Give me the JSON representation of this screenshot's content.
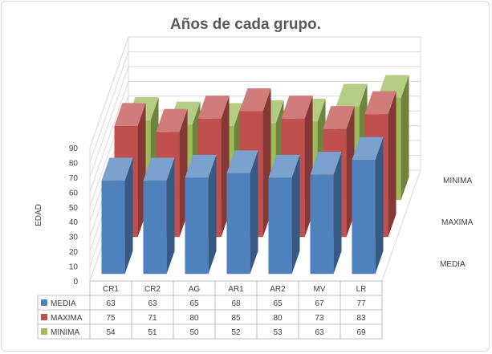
{
  "chart_data": {
    "type": "bar",
    "title": "Años de cada grupo.",
    "ylabel": "EDAD",
    "xlabel": "",
    "ylim": [
      0,
      90
    ],
    "yticks": [
      0,
      10,
      20,
      30,
      40,
      50,
      60,
      70,
      80,
      90
    ],
    "categories": [
      "CR1",
      "CR2",
      "AG",
      "AR1",
      "AR2",
      "MV",
      "LR"
    ],
    "series": [
      {
        "name": "MEDIA",
        "values": [
          63,
          63,
          65,
          68,
          65,
          67,
          77
        ]
      },
      {
        "name": "MAXIMA",
        "values": [
          75,
          71,
          80,
          85,
          80,
          73,
          83
        ]
      },
      {
        "name": "MINIMA",
        "values": [
          54,
          51,
          50,
          52,
          53,
          63,
          69
        ]
      }
    ],
    "depth_axis_labels": [
      "MEDIA",
      "MAXIMA",
      "MINIMA"
    ],
    "grid": true,
    "legend": "data-table-below",
    "colors": {
      "MEDIA": "#4f81bd",
      "MAXIMA": "#c0504d",
      "MINIMA": "#9bbb59"
    }
  }
}
